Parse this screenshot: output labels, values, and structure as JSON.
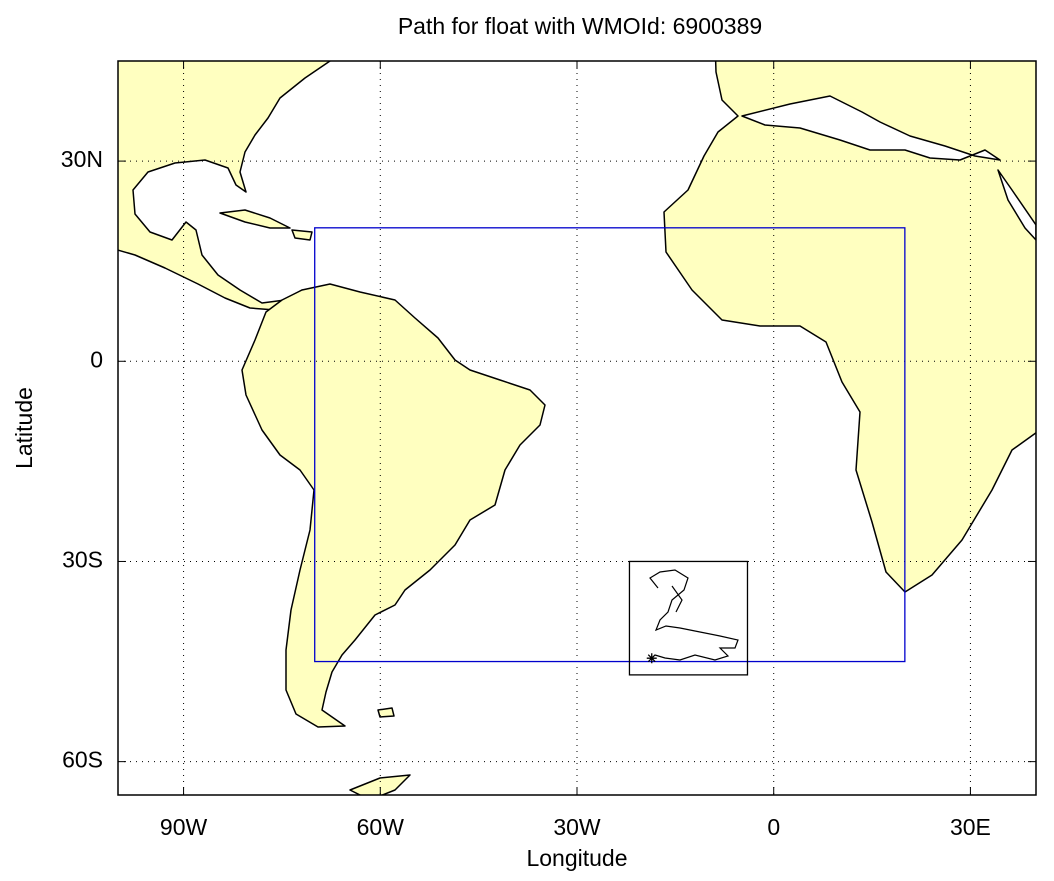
{
  "title": "Path for float with WMOId: 6900389",
  "x_label": "Longitude",
  "y_label": "Latitude",
  "xlim": [
    -100,
    40
  ],
  "ylim": [
    -65,
    45
  ],
  "xticks": [
    {
      "value": -90,
      "label": "90W"
    },
    {
      "value": -60,
      "label": "60W"
    },
    {
      "value": -30,
      "label": "30W"
    },
    0,
    {
      "value": 30,
      "label": "30E"
    }
  ],
  "yticks": [
    {
      "value": 30,
      "label": "30N"
    },
    0,
    {
      "value": -30,
      "label": "30S"
    },
    {
      "value": -60,
      "label": "60S"
    }
  ],
  "grid": true,
  "boxes": [
    {
      "color": "#0000cc",
      "lon": [
        -70,
        20
      ],
      "lat": [
        -45,
        20
      ]
    },
    {
      "color": "#000000",
      "lon": [
        -22,
        -4
      ],
      "lat": [
        -47,
        -30
      ]
    }
  ],
  "float_start": {
    "lon": -18.6,
    "lat": -44.5
  }
}
